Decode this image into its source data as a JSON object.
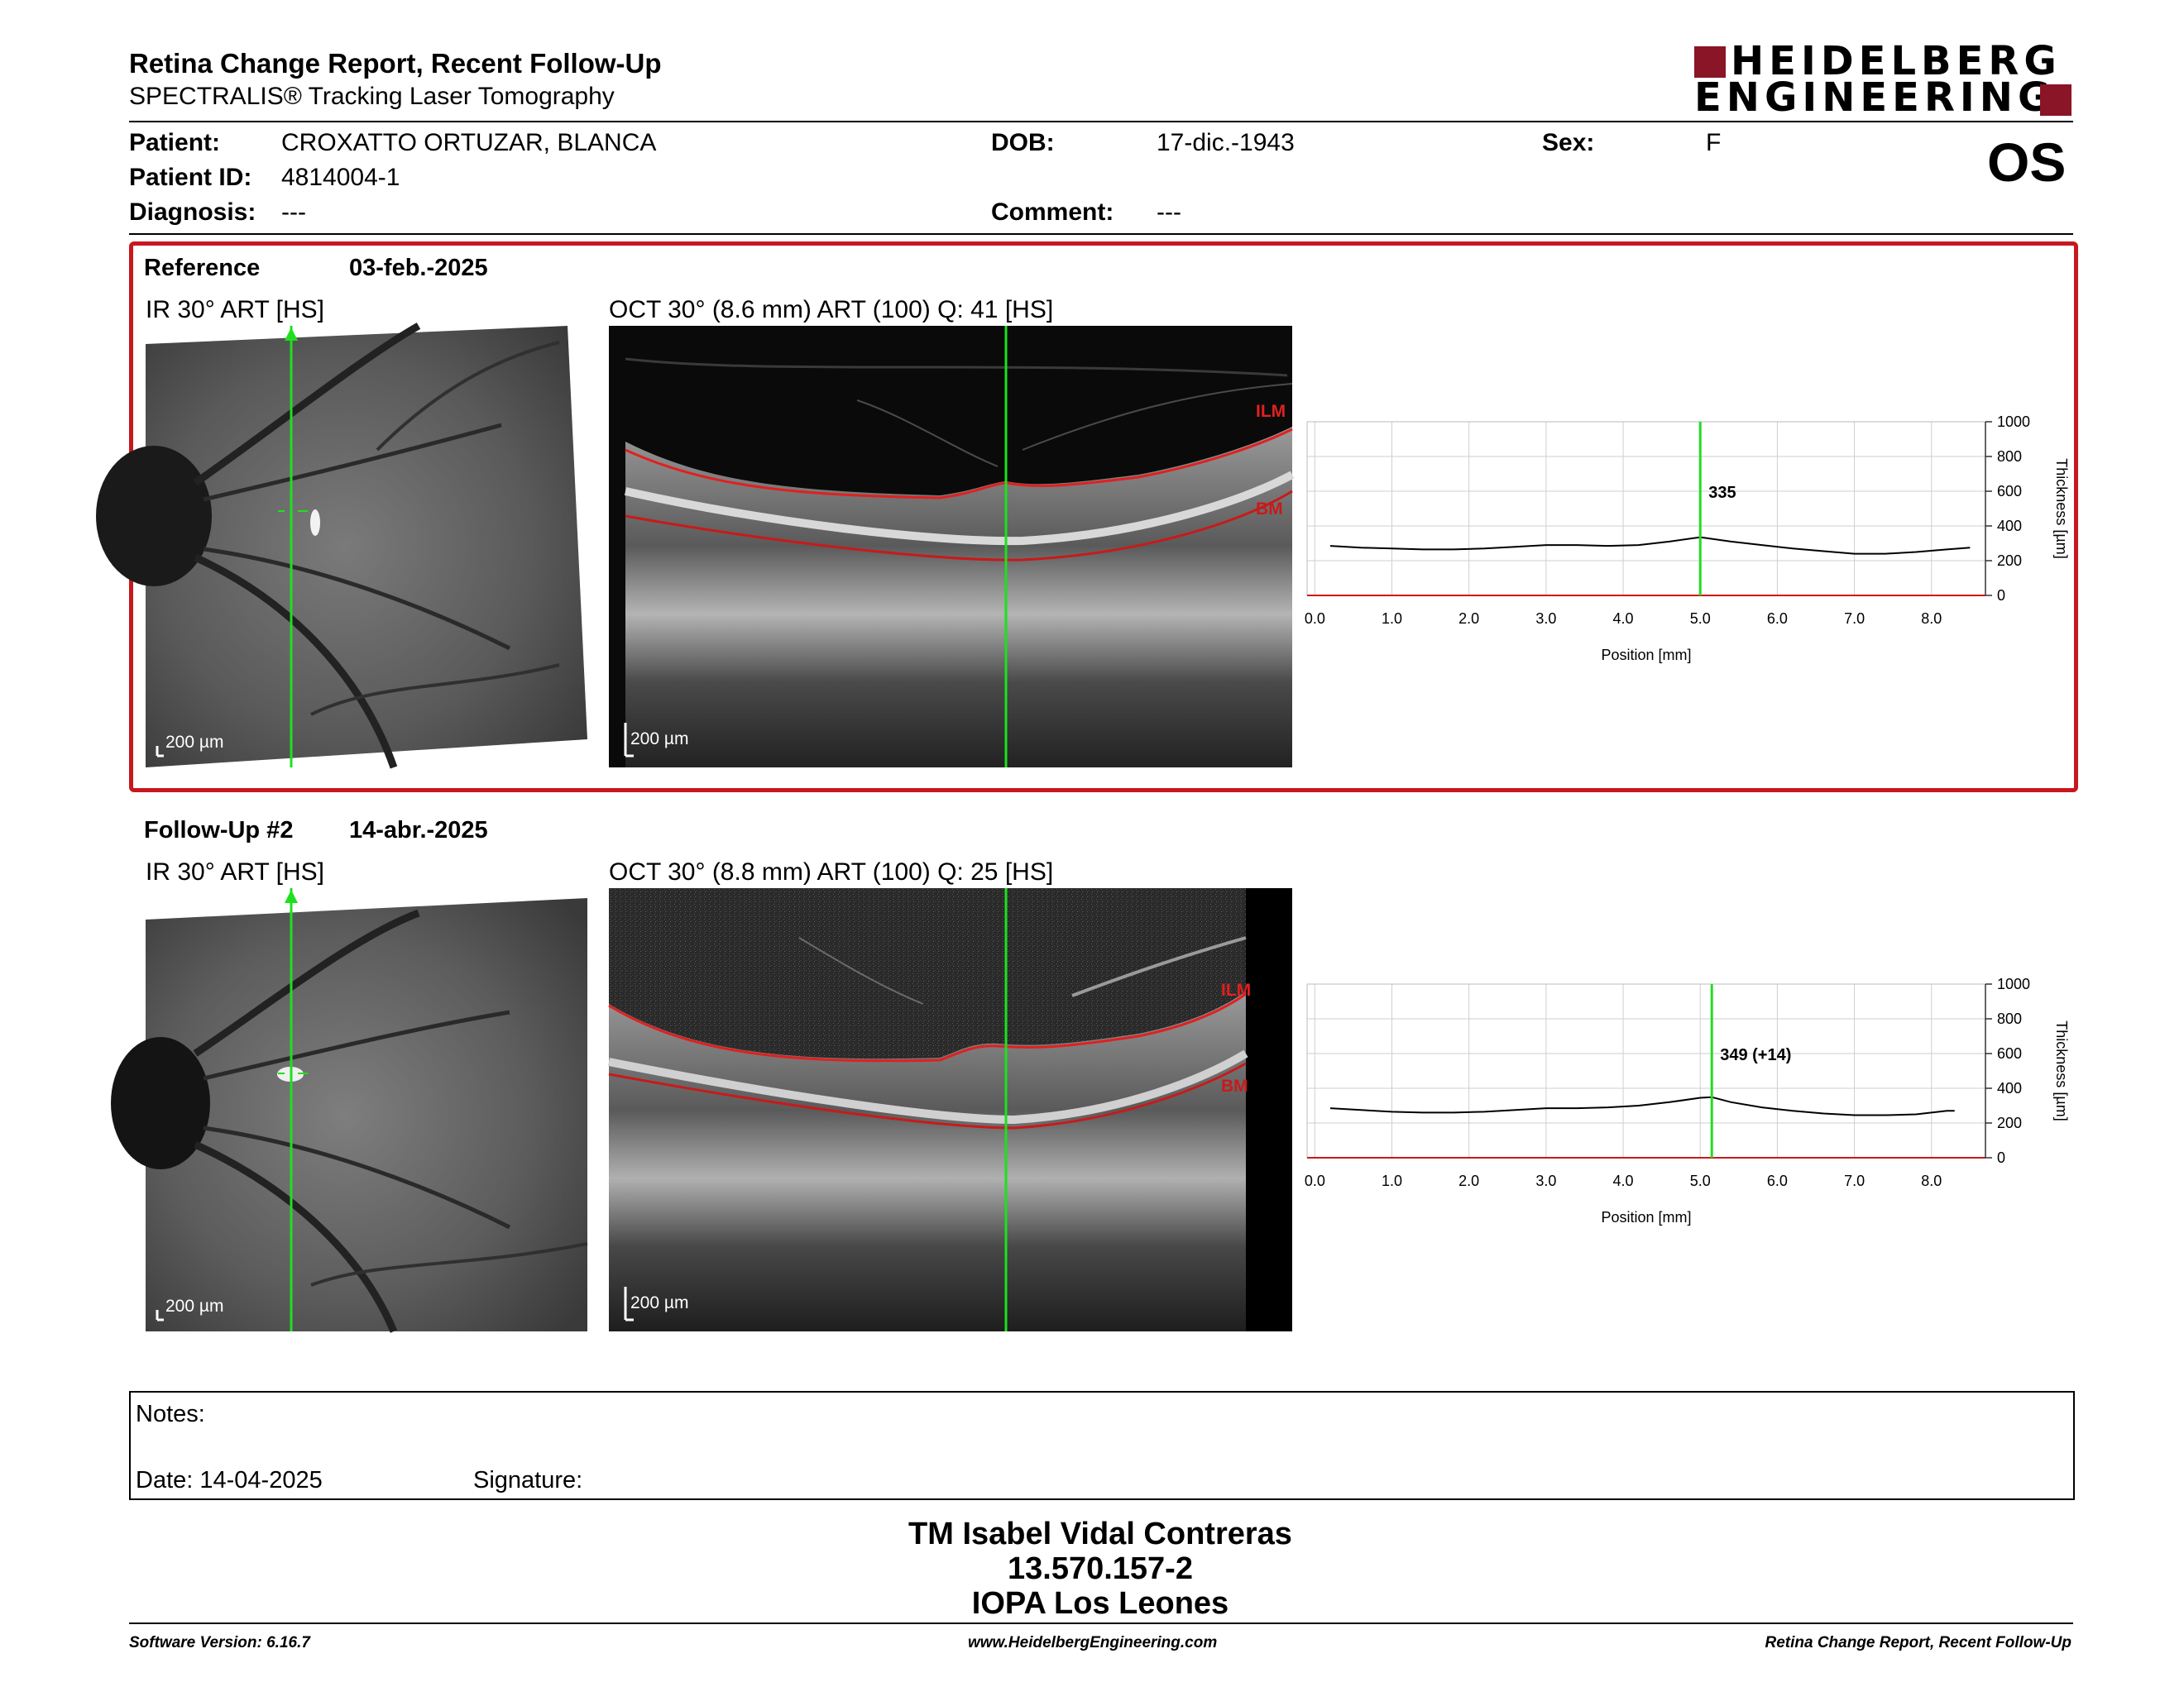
{
  "header": {
    "title": "Retina Change Report, Recent Follow-Up",
    "subtitle": "SPECTRALIS® Tracking Laser Tomography",
    "logo_line1": "HEIDELBERG",
    "logo_line2": "ENGINEERING",
    "eye": "OS"
  },
  "patient": {
    "patient_label": "Patient:",
    "patient_value": "CROXATTO ORTUZAR, BLANCA",
    "id_label": "Patient ID:",
    "id_value": "4814004-1",
    "diagnosis_label": "Diagnosis:",
    "diagnosis_value": "---",
    "dob_label": "DOB:",
    "dob_value": "17-dic.-1943",
    "comment_label": "Comment:",
    "comment_value": "---",
    "sex_label": "Sex:",
    "sex_value": "F"
  },
  "reference": {
    "label": "Reference",
    "date": "03-feb.-2025",
    "ir_title": "IR 30° ART [HS]",
    "oct_title": "OCT 30° (8.6 mm) ART (100) Q: 41 [HS]",
    "scale": "200 µm",
    "ilm": "ILM",
    "bm": "BM",
    "thickness_label": "335"
  },
  "followup": {
    "label": "Follow-Up #2",
    "date": "14-abr.-2025",
    "ir_title": "IR 30° ART [HS]",
    "oct_title": "OCT 30° (8.8 mm) ART (100) Q: 25 [HS]",
    "scale": "200 µm",
    "ilm": "ILM",
    "bm": "BM",
    "thickness_label": "349 (+14)"
  },
  "chart_data": [
    {
      "type": "line",
      "xlabel": "Position [mm]",
      "ylabel": "Thickness [µm]",
      "xlim": [
        -0.1,
        8.7
      ],
      "ylim": [
        0,
        1000
      ],
      "x_ticks": [
        "0.0",
        "1.0",
        "2.0",
        "3.0",
        "4.0",
        "5.0",
        "6.0",
        "7.0",
        "8.0"
      ],
      "y_ticks": [
        "0",
        "200",
        "400",
        "600",
        "800",
        "1000"
      ],
      "marker_x": 5.0,
      "marker_label": "335",
      "series": [
        {
          "x": [
            0.2,
            0.6,
            1.0,
            1.4,
            1.8,
            2.2,
            2.6,
            3.0,
            3.4,
            3.8,
            4.2,
            4.6,
            5.0,
            5.4,
            5.8,
            6.2,
            6.6,
            7.0,
            7.4,
            7.8,
            8.2,
            8.5
          ],
          "values": [
            285,
            275,
            270,
            265,
            265,
            270,
            280,
            290,
            290,
            285,
            290,
            310,
            335,
            310,
            290,
            270,
            255,
            240,
            240,
            250,
            265,
            275
          ]
        }
      ],
      "colors": {
        "line": "#000000",
        "marker": "#22dd22"
      }
    },
    {
      "type": "line",
      "xlabel": "Position [mm]",
      "ylabel": "Thickness [µm]",
      "xlim": [
        -0.1,
        8.7
      ],
      "ylim": [
        0,
        1000
      ],
      "x_ticks": [
        "0.0",
        "1.0",
        "2.0",
        "3.0",
        "4.0",
        "5.0",
        "6.0",
        "7.0",
        "8.0"
      ],
      "y_ticks": [
        "0",
        "200",
        "400",
        "600",
        "800",
        "1000"
      ],
      "marker_x": 5.15,
      "marker_label": "349 (+14)",
      "series": [
        {
          "x": [
            0.2,
            0.6,
            1.0,
            1.4,
            1.8,
            2.2,
            2.6,
            3.0,
            3.4,
            3.8,
            4.2,
            4.6,
            5.0,
            5.15,
            5.4,
            5.8,
            6.2,
            6.6,
            7.0,
            7.4,
            7.8,
            8.2,
            8.3
          ],
          "values": [
            285,
            275,
            265,
            260,
            260,
            265,
            275,
            285,
            285,
            290,
            300,
            320,
            345,
            349,
            320,
            290,
            270,
            255,
            245,
            245,
            250,
            270,
            270
          ]
        }
      ],
      "colors": {
        "line": "#000000",
        "marker": "#22dd22",
        "increase": "#d98c8c",
        "decrease": "#6cc06c"
      }
    }
  ],
  "notes": {
    "label": "Notes:",
    "date": "Date: 14-04-2025",
    "signature": "Signature:"
  },
  "signer": {
    "name": "TM Isabel Vidal Contreras",
    "id": "13.570.157-2",
    "org": "IOPA Los Leones"
  },
  "footer": {
    "left": "Software Version: 6.16.7",
    "center": "www.HeidelbergEngineering.com",
    "right": "Retina Change Report, Recent Follow-Up"
  }
}
